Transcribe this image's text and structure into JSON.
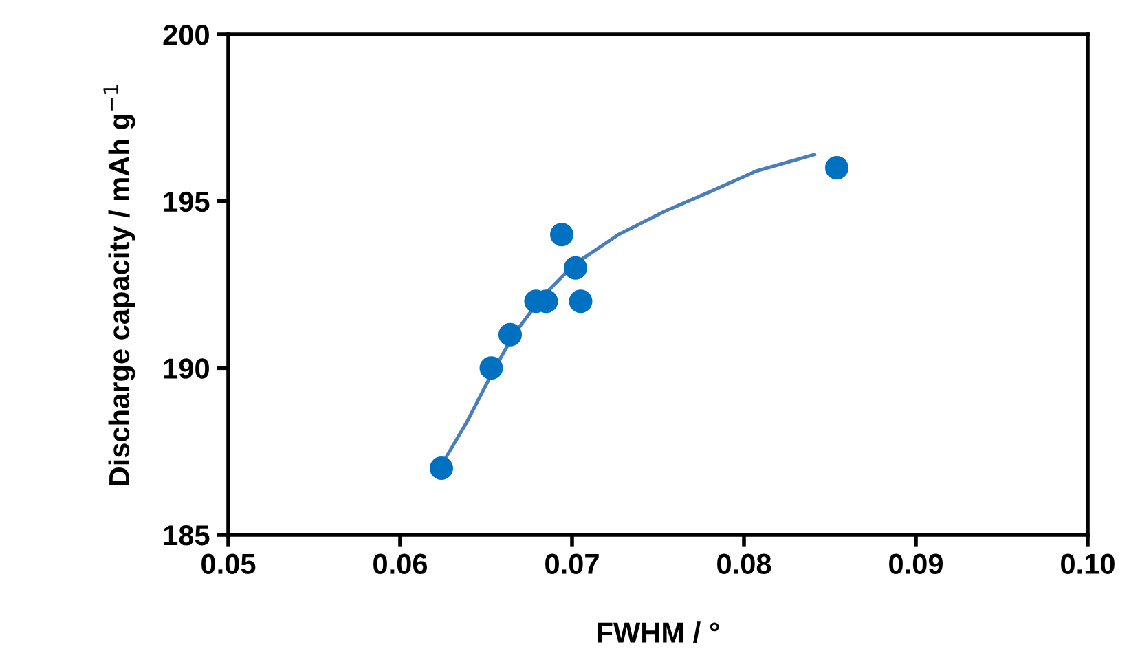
{
  "chart_data": {
    "type": "scatter",
    "xlabel": "FWHM / °",
    "ylabel": "Discharge capacity / mAh g$^{−1}$",
    "xlim": [
      0.05,
      0.1
    ],
    "xticks": [
      {
        "value": 0.05,
        "label": "0.05"
      },
      {
        "value": 0.06,
        "label": "0.06"
      },
      {
        "value": 0.07,
        "label": "0.07"
      },
      {
        "value": 0.08,
        "label": "0.08"
      },
      {
        "value": 0.09,
        "label": "0.09"
      },
      {
        "value": 0.1,
        "label": "0.10"
      }
    ],
    "ylim": [
      185,
      200
    ],
    "yticks": [
      185,
      190,
      195,
      200
    ],
    "grid": false,
    "legend": false,
    "series": [
      {
        "color": "#0070c0",
        "marker": "circle",
        "x": [
          0.0624,
          0.0653,
          0.0664,
          0.0679,
          0.0685,
          0.0694,
          0.0702,
          0.0705,
          0.0854
        ],
        "values": [
          187,
          190,
          191,
          192,
          192,
          194,
          193,
          192,
          196
        ]
      },
      {
        "type": "line",
        "color": "#4a7ebb",
        "marker": "none",
        "x": [
          0.0623,
          0.0639,
          0.0653,
          0.0666,
          0.0682,
          0.0701,
          0.0727,
          0.0754,
          0.0781,
          0.0807,
          0.0841
        ],
        "values": [
          187.0,
          188.4,
          189.8,
          191.0,
          192.1,
          193.1,
          194.0,
          194.7,
          195.3,
          195.9,
          196.4
        ]
      }
    ]
  }
}
